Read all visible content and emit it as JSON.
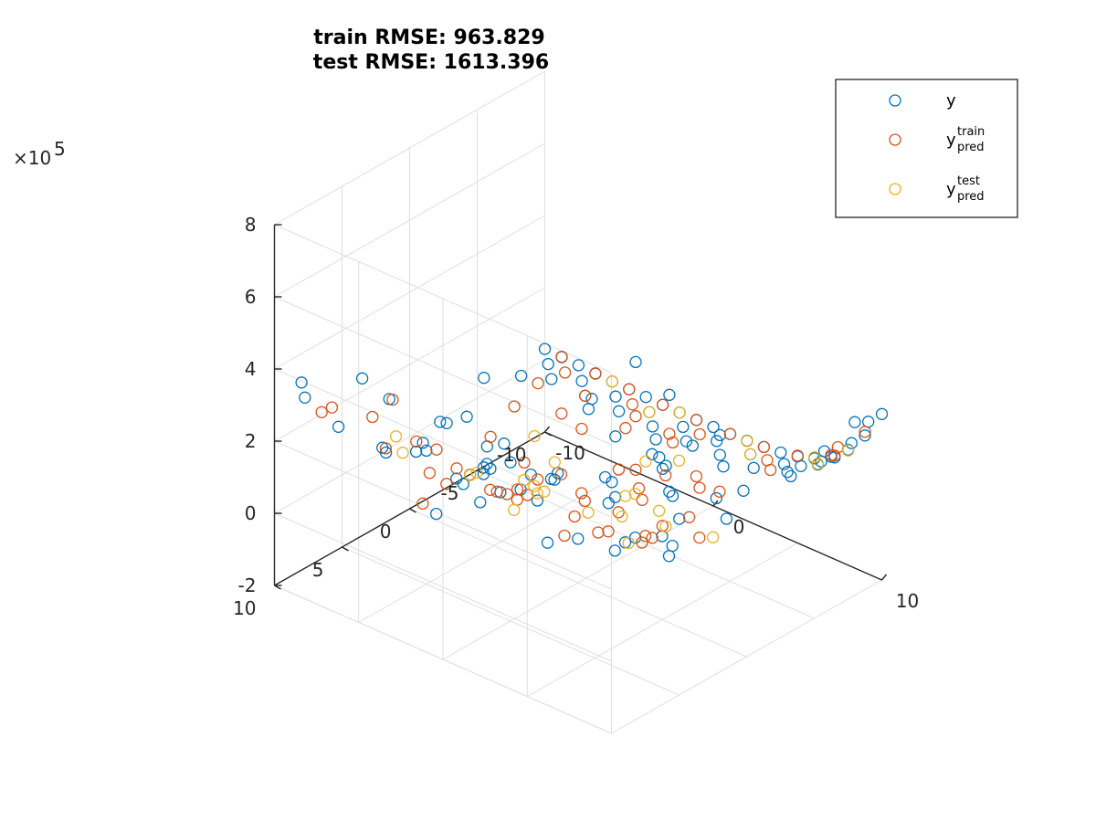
{
  "title_lines": [
    "train RMSE: 963.829",
    "test RMSE: 1613.396"
  ],
  "colors": {
    "y": "#0072BD",
    "train": "#D95319",
    "test": "#EDB120",
    "grid": "#DFDFDF",
    "axis": "#262626"
  },
  "chart_data": {
    "type": "scatter",
    "title": "train RMSE: 963.829\ntest RMSE: 1613.396",
    "projection": "3d",
    "grid": true,
    "legend_position": "top-right",
    "xlim": [
      -10,
      10
    ],
    "ylim": [
      -10,
      10
    ],
    "zlim": [
      -200000,
      800000
    ],
    "x_ticks": [
      "-10",
      "0",
      "10"
    ],
    "y_ticks": [
      "-10",
      "-5",
      "0",
      "5",
      "10"
    ],
    "z_ticks": [
      "-2",
      "0",
      "2",
      "4",
      "6",
      "8"
    ],
    "z_exponent": "×10^5",
    "series": [
      {
        "name": "y",
        "label_main": "y",
        "marker": "o",
        "color": "#0072BD",
        "points": [
          [
            -9,
            9,
            320000
          ],
          [
            -10,
            8,
            320000
          ],
          [
            -8,
            6,
            330000
          ],
          [
            -7,
            9,
            280000
          ],
          [
            -9,
            3,
            40000
          ],
          [
            -8,
            -3,
            140000
          ],
          [
            -9,
            -1,
            40000
          ],
          [
            -7,
            1,
            120000
          ],
          [
            -6,
            4,
            150000
          ],
          [
            -6,
            -2,
            20000
          ],
          [
            -5,
            2,
            200000
          ],
          [
            -5,
            5,
            170000
          ],
          [
            -4,
            7,
            230000
          ],
          [
            -4,
            -6,
            100000
          ],
          [
            -3,
            3,
            180000
          ],
          [
            -3,
            -8,
            180000
          ],
          [
            -2,
            8,
            120000
          ],
          [
            -2,
            4,
            160000
          ],
          [
            -2,
            1,
            80000
          ],
          [
            -1,
            6,
            130000
          ],
          [
            -1,
            -4,
            100000
          ],
          [
            -1,
            -8,
            130000
          ],
          [
            0,
            9,
            280000
          ],
          [
            0,
            5,
            240000
          ],
          [
            0,
            2,
            130000
          ],
          [
            0,
            -2,
            50000
          ],
          [
            0,
            -6,
            20000
          ],
          [
            1,
            7,
            220000
          ],
          [
            1,
            3,
            170000
          ],
          [
            1,
            -1,
            20000
          ],
          [
            1,
            -5,
            30000
          ],
          [
            2,
            4,
            230000
          ],
          [
            2,
            0,
            120000
          ],
          [
            2,
            -4,
            80000
          ],
          [
            2,
            -8,
            80000
          ],
          [
            3,
            6,
            100000
          ],
          [
            3,
            1,
            120000
          ],
          [
            3,
            -3,
            50000
          ],
          [
            4,
            5,
            110000
          ],
          [
            4,
            -2,
            80000
          ],
          [
            5,
            2,
            70000
          ],
          [
            5,
            -6,
            30000
          ],
          [
            6,
            4,
            120000
          ],
          [
            6,
            0,
            100000
          ],
          [
            7,
            6,
            160000
          ],
          [
            7,
            2,
            60000
          ],
          [
            8,
            3,
            130000
          ],
          [
            8,
            -1,
            120000
          ],
          [
            9,
            5,
            220000
          ],
          [
            9,
            1,
            240000
          ],
          [
            10,
            4,
            470000
          ],
          [
            10,
            7,
            510000
          ],
          [
            -8,
            4,
            230000
          ],
          [
            -6,
            7,
            200000
          ],
          [
            -4,
            2,
            80000
          ],
          [
            -2,
            6,
            160000
          ],
          [
            1,
            8,
            320000
          ],
          [
            3,
            8,
            290000
          ],
          [
            4,
            8,
            280000
          ],
          [
            0,
            7,
            250000
          ],
          [
            -10,
            -10,
            30000
          ],
          [
            -9,
            -10,
            28000
          ],
          [
            -8,
            -10,
            26000
          ],
          [
            -7,
            -10,
            24000
          ],
          [
            -6,
            -10,
            22000
          ],
          [
            -5,
            -10,
            21000
          ],
          [
            -4,
            -10,
            20000
          ],
          [
            -3,
            -10,
            19000
          ],
          [
            -2,
            -10,
            18000
          ],
          [
            -1,
            -10,
            18000
          ],
          [
            0,
            -10,
            19000
          ],
          [
            1,
            -10,
            20000
          ],
          [
            2,
            -10,
            22000
          ],
          [
            3,
            -10,
            25000
          ],
          [
            4,
            -10,
            30000
          ],
          [
            5,
            -10,
            40000
          ],
          [
            6,
            -10,
            55000
          ],
          [
            7,
            -10,
            80000
          ],
          [
            8,
            -10,
            120000
          ],
          [
            9,
            -10,
            180000
          ],
          [
            10,
            -10,
            260000
          ],
          [
            -9,
            -9,
            30000
          ],
          [
            -7,
            -9,
            24000
          ],
          [
            -5,
            -9,
            22000
          ],
          [
            -3,
            -9,
            20000
          ],
          [
            -1,
            -9,
            20000
          ],
          [
            1,
            -9,
            22000
          ],
          [
            3,
            -9,
            26000
          ],
          [
            5,
            -9,
            40000
          ],
          [
            6,
            -9,
            55000
          ],
          [
            7,
            -9,
            80000
          ],
          [
            8,
            -9,
            120000
          ],
          [
            9,
            -9,
            180000
          ],
          [
            10,
            -9,
            260000
          ],
          [
            -8,
            -8,
            30000
          ],
          [
            -6,
            -8,
            25000
          ],
          [
            -4,
            -8,
            23000
          ],
          [
            -2,
            -8,
            22000
          ],
          [
            0,
            -8,
            22000
          ],
          [
            2,
            -8,
            25000
          ],
          [
            4,
            -8,
            30000
          ],
          [
            6,
            -8,
            60000
          ],
          [
            8,
            -8,
            130000
          ],
          [
            10,
            -8,
            280000
          ],
          [
            -9,
            -7,
            40000
          ],
          [
            -5,
            -7,
            30000
          ],
          [
            -1,
            -7,
            28000
          ],
          [
            3,
            -7,
            35000
          ],
          [
            7,
            -7,
            90000
          ],
          [
            9,
            -7,
            200000
          ]
        ]
      },
      {
        "name": "y_pred_train",
        "label_main": "y",
        "label_sup": "train",
        "label_sub": "pred",
        "marker": "o",
        "color": "#D95319",
        "points": [
          [
            -9,
            7,
            250000
          ],
          [
            -8,
            9,
            300000
          ],
          [
            -8,
            2,
            70000
          ],
          [
            -7,
            5,
            270000
          ],
          [
            -7,
            -4,
            60000
          ],
          [
            -6,
            -1,
            60000
          ],
          [
            -5,
            8,
            240000
          ],
          [
            -5,
            -5,
            60000
          ],
          [
            -4,
            4,
            120000
          ],
          [
            -4,
            -1,
            30000
          ],
          [
            -3,
            6,
            140000
          ],
          [
            -3,
            -4,
            80000
          ],
          [
            -2,
            2,
            60000
          ],
          [
            -2,
            -6,
            60000
          ],
          [
            -1,
            4,
            110000
          ],
          [
            -1,
            0,
            80000
          ],
          [
            0,
            6,
            180000
          ],
          [
            0,
            3,
            150000
          ],
          [
            0,
            -3,
            50000
          ],
          [
            0,
            -7,
            40000
          ],
          [
            1,
            5,
            170000
          ],
          [
            1,
            1,
            90000
          ],
          [
            1,
            -3,
            70000
          ],
          [
            2,
            7,
            220000
          ],
          [
            2,
            2,
            110000
          ],
          [
            2,
            -2,
            60000
          ],
          [
            3,
            4,
            130000
          ],
          [
            3,
            -1,
            70000
          ],
          [
            3,
            -5,
            50000
          ],
          [
            4,
            6,
            140000
          ],
          [
            4,
            2,
            120000
          ],
          [
            4,
            -4,
            60000
          ],
          [
            5,
            4,
            130000
          ],
          [
            5,
            0,
            60000
          ],
          [
            6,
            6,
            190000
          ],
          [
            6,
            2,
            90000
          ],
          [
            7,
            4,
            140000
          ],
          [
            8,
            5,
            200000
          ],
          [
            8,
            1,
            110000
          ],
          [
            9,
            3,
            230000
          ],
          [
            10,
            6,
            430000
          ],
          [
            10,
            2,
            300000
          ],
          [
            -9,
            4,
            160000
          ],
          [
            -6,
            3,
            110000
          ],
          [
            -4,
            6,
            150000
          ],
          [
            -2,
            9,
            170000
          ],
          [
            0,
            8,
            270000
          ],
          [
            2,
            9,
            290000
          ],
          [
            -8,
            -7,
            40000
          ],
          [
            -3,
            -8,
            30000
          ],
          [
            -9,
            -10,
            29000
          ],
          [
            -7,
            -10,
            23000
          ],
          [
            -5,
            -10,
            21000
          ],
          [
            -3,
            -10,
            19000
          ],
          [
            -1,
            -10,
            18000
          ],
          [
            1,
            -10,
            20000
          ],
          [
            3,
            -10,
            25000
          ],
          [
            5,
            -10,
            42000
          ],
          [
            7,
            -10,
            85000
          ],
          [
            9,
            -10,
            190000
          ],
          [
            -8,
            -9,
            27000
          ],
          [
            -4,
            -9,
            21000
          ],
          [
            0,
            -9,
            20000
          ],
          [
            4,
            -9,
            30000
          ],
          [
            8,
            -9,
            125000
          ],
          [
            -6,
            -8,
            25000
          ],
          [
            -1,
            -8,
            22000
          ],
          [
            5,
            -8,
            45000
          ],
          [
            9,
            -8,
            190000
          ]
        ]
      },
      {
        "name": "y_pred_test",
        "label_main": "y",
        "label_sup": "test",
        "label_sub": "pred",
        "marker": "o",
        "color": "#EDB120",
        "points": [
          [
            -8,
            3,
            60000
          ],
          [
            -6,
            6,
            210000
          ],
          [
            -5,
            -3,
            40000
          ],
          [
            -4,
            3,
            80000
          ],
          [
            -3,
            -2,
            30000
          ],
          [
            -2,
            5,
            170000
          ],
          [
            -1,
            2,
            90000
          ],
          [
            0,
            4,
            170000
          ],
          [
            0,
            -5,
            30000
          ],
          [
            1,
            6,
            150000
          ],
          [
            2,
            -1,
            60000
          ],
          [
            2,
            5,
            200000
          ],
          [
            3,
            3,
            120000
          ],
          [
            4,
            -1,
            60000
          ],
          [
            4,
            8,
            300000
          ],
          [
            5,
            3,
            150000
          ],
          [
            6,
            1,
            100000
          ],
          [
            7,
            5,
            160000
          ],
          [
            8,
            0,
            90000
          ],
          [
            9,
            7,
            380000
          ],
          [
            10,
            5,
            450000
          ],
          [
            -6,
            -10,
            22000
          ],
          [
            -2,
            -10,
            18000
          ],
          [
            2,
            -10,
            21000
          ],
          [
            6,
            -10,
            58000
          ],
          [
            8,
            -10,
            118000
          ],
          [
            -3,
            -9,
            20000
          ],
          [
            3,
            -9,
            26000
          ],
          [
            7,
            -9,
            82000
          ]
        ]
      }
    ]
  }
}
